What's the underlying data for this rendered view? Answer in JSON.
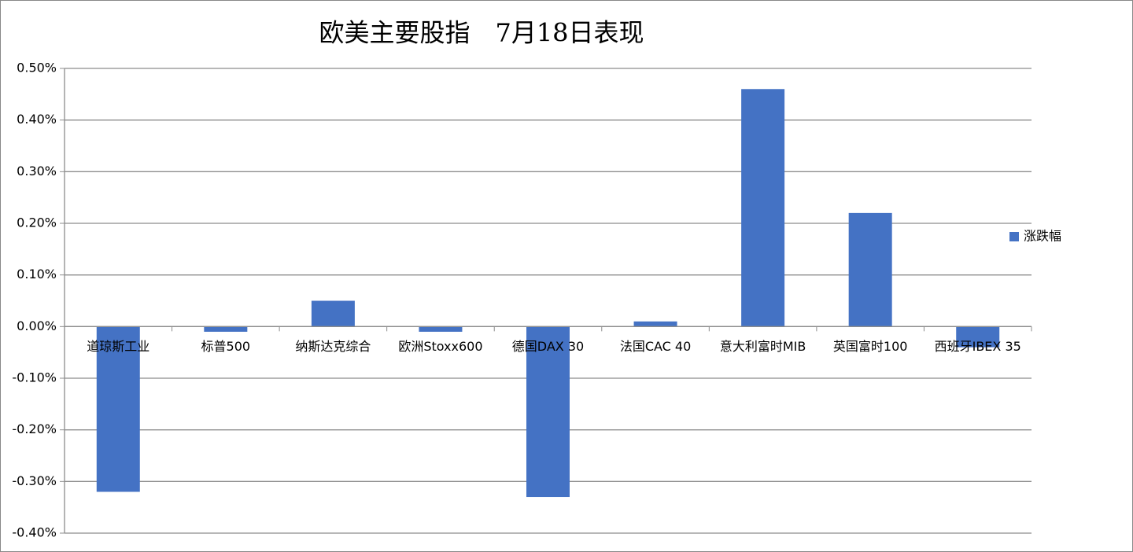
{
  "chart_data": {
    "type": "bar",
    "title": "欧美主要股指　7月18日表现",
    "categories": [
      "道琼斯工业",
      "标普500",
      "纳斯达克综合",
      "欧洲Stoxx600",
      "德国DAX 30",
      "法国CAC 40",
      "意大利富时MIB",
      "英国富时100",
      "西班牙IBEX 35"
    ],
    "series": [
      {
        "name": "涨跌幅",
        "color": "#4472c4",
        "values": [
          -0.32,
          -0.01,
          0.05,
          -0.01,
          -0.33,
          0.01,
          0.46,
          0.22,
          -0.04
        ]
      }
    ],
    "ylim": [
      -0.4,
      0.5
    ],
    "yticks": [
      {
        "value": -0.4,
        "label": "-0.40%"
      },
      {
        "value": -0.3,
        "label": "-0.30%"
      },
      {
        "value": -0.2,
        "label": "-0.20%"
      },
      {
        "value": -0.1,
        "label": "-0.10%"
      },
      {
        "value": 0,
        "label": "0.00%"
      },
      {
        "value": 0.1,
        "label": "0.10%"
      },
      {
        "value": 0.2,
        "label": "0.20%"
      },
      {
        "value": 0.3,
        "label": "0.30%"
      },
      {
        "value": 0.4,
        "label": "0.40%"
      },
      {
        "value": 0.5,
        "label": "0.50%"
      }
    ],
    "grid": true,
    "legend": "right"
  }
}
